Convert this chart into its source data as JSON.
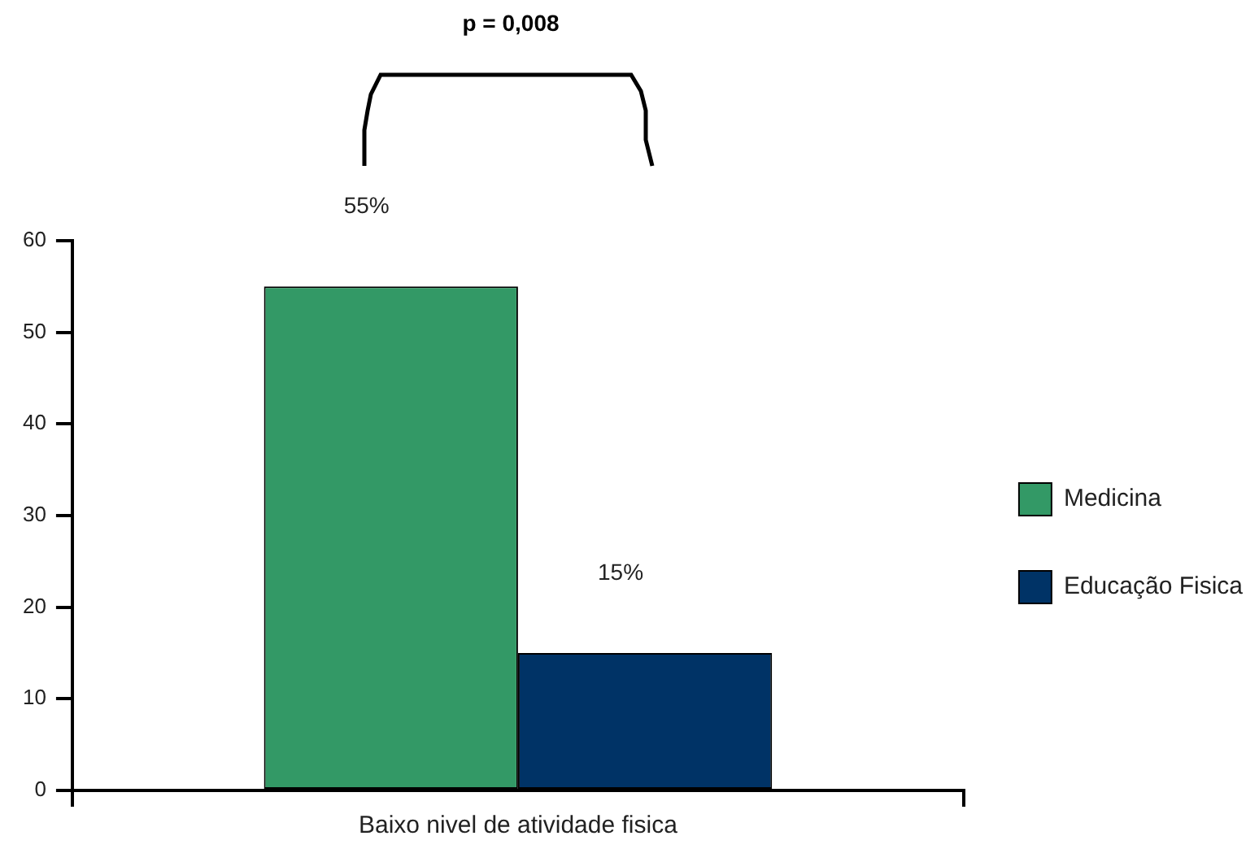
{
  "chart_data": {
    "type": "bar",
    "categories": [
      "Baixo nivel de atividade fisica"
    ],
    "series": [
      {
        "name": "Medicina",
        "color": "#339966",
        "values": [
          55
        ],
        "value_labels": [
          "55%"
        ]
      },
      {
        "name": "Educação Fisica",
        "color": "#003366",
        "values": [
          15
        ],
        "value_labels": [
          "15%"
        ]
      }
    ],
    "ylim": [
      0,
      60
    ],
    "yticks": [
      0,
      10,
      20,
      30,
      40,
      50,
      60
    ],
    "grid": false,
    "legend": "right",
    "annotations": [
      "p = 0,008"
    ]
  }
}
